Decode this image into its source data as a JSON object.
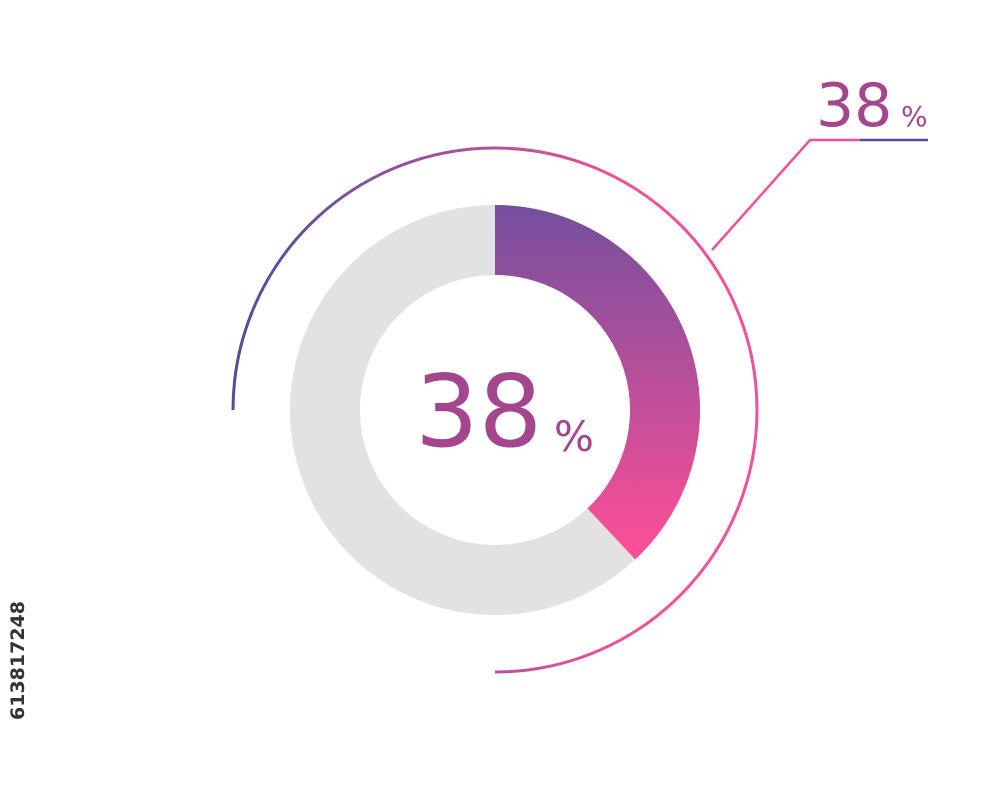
{
  "chart_data": {
    "type": "donut",
    "values": [
      38
    ],
    "unit": "%",
    "colors": [
      "#744f9e",
      "#ff4f96"
    ],
    "track_color": "#e2e2e2",
    "ring_colors": [
      "#4a4f9e",
      "#f2509a"
    ],
    "text_color": "#a3468e"
  },
  "watermark": "613817248"
}
